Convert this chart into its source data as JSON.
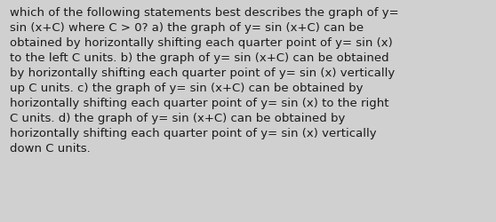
{
  "text": "which of the following statements best describes the graph of y=\nsin (x+C) where C > 0? a) the graph of y= sin (x+C) can be\nobtained by horizontally shifting each quarter point of y= sin (x)\nto the left C units. b) the graph of y= sin (x+C) can be obtained\nby horizontally shifting each quarter point of y= sin (x) vertically\nup C units. c) the graph of y= sin (x+C) can be obtained by\nhorizontally shifting each quarter point of y= sin (x) to the right\nC units. d) the graph of y= sin (x+C) can be obtained by\nhorizontally shifting each quarter point of y= sin (x) vertically\ndown C units.",
  "background_color": "#d0d0d0",
  "text_color": "#1a1a1a",
  "font_size": 9.5,
  "fig_width": 5.58,
  "fig_height": 2.51,
  "dpi": 100
}
